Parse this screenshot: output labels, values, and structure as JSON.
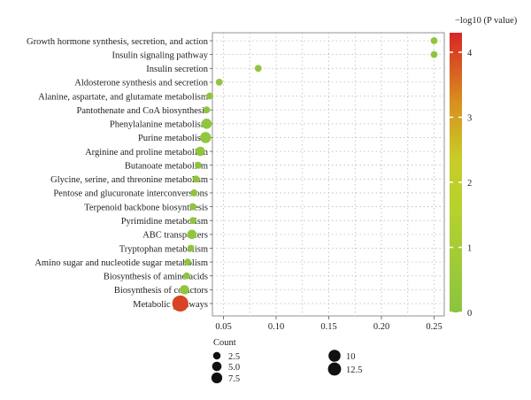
{
  "chart_data": {
    "type": "scatter",
    "title": "",
    "xlabel": "",
    "ylabel": "",
    "xlim": [
      0.05,
      0.25
    ],
    "xticks": [
      "0.05",
      "0.10",
      "0.15",
      "0.20",
      "0.25"
    ],
    "grid": true,
    "colorbar": {
      "title": "−log10 (P value)",
      "min": 0,
      "max": 4.3,
      "ticks": [
        "0",
        "1",
        "2",
        "3",
        "4"
      ],
      "low_color": "#8BC43F",
      "mid_color": "#C2D42F",
      "high_color": "#D82626"
    },
    "size_legend": {
      "title": "Count",
      "entries": [
        "2.5",
        "5.0",
        "7.5",
        "10",
        "12.5"
      ],
      "values": [
        2.5,
        5.0,
        7.5,
        10,
        12.5
      ]
    },
    "points": [
      {
        "term": "Growth hormone synthesis, secretion, and action",
        "x": 0.25,
        "count": 1,
        "neglog10p": 0.08
      },
      {
        "term": "Insulin signaling pathway",
        "x": 0.25,
        "count": 1,
        "neglog10p": 0.08
      },
      {
        "term": "Insulin secretion",
        "x": 0.083,
        "count": 1,
        "neglog10p": 0.1
      },
      {
        "term": "Aldosterone synthesis and secretion",
        "x": 0.046,
        "count": 1,
        "neglog10p": 0.12
      },
      {
        "term": "Alanine, aspartate, and glutamate metabolism",
        "x": 0.037,
        "count": 1,
        "neglog10p": 0.12
      },
      {
        "term": "Pantothenate and CoA biosynthesis",
        "x": 0.034,
        "count": 1,
        "neglog10p": 0.12
      },
      {
        "term": "Phenylalanine metabolism",
        "x": 0.034,
        "count": 4,
        "neglog10p": 0.2
      },
      {
        "term": "Purine metabolism",
        "x": 0.033,
        "count": 5,
        "neglog10p": 0.22
      },
      {
        "term": "Arginine and proline metabolism",
        "x": 0.028,
        "count": 3,
        "neglog10p": 0.2
      },
      {
        "term": "Butanoate metabolism",
        "x": 0.026,
        "count": 1,
        "neglog10p": 0.12
      },
      {
        "term": "Glycine, serine, and threonine metabolism",
        "x": 0.024,
        "count": 1,
        "neglog10p": 0.12
      },
      {
        "term": "Pentose and glucuronate interconversions",
        "x": 0.022,
        "count": 1,
        "neglog10p": 0.12
      },
      {
        "term": "Terpenoid backbone biosynthesis",
        "x": 0.021,
        "count": 1,
        "neglog10p": 0.12
      },
      {
        "term": "Pyrimidine metabolism",
        "x": 0.021,
        "count": 1,
        "neglog10p": 0.12
      },
      {
        "term": "ABC transporters",
        "x": 0.02,
        "count": 3,
        "neglog10p": 0.2
      },
      {
        "term": "Tryptophan metabolism",
        "x": 0.019,
        "count": 1,
        "neglog10p": 0.12
      },
      {
        "term": "Amino sugar and nucleotide sugar metabolism",
        "x": 0.016,
        "count": 1,
        "neglog10p": 0.12
      },
      {
        "term": "Biosynthesis of amino acids",
        "x": 0.015,
        "count": 1,
        "neglog10p": 0.12
      },
      {
        "term": "Biosynthesis of cofactors",
        "x": 0.013,
        "count": 3,
        "neglog10p": 0.22
      },
      {
        "term": "Metabolic pathways",
        "x": 0.009,
        "count": 14,
        "neglog10p": 4.0
      }
    ]
  }
}
